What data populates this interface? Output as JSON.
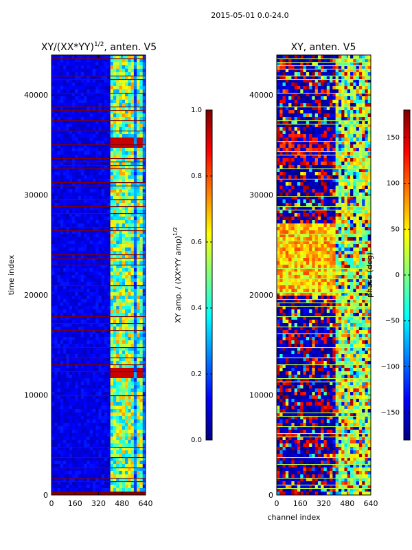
{
  "figure": {
    "suptitle": "2015-05-01 0.0-24.0",
    "shared_xlabel": "channel index"
  },
  "colormap_stops": [
    "#00007f",
    "#0000ff",
    "#007fff",
    "#00ffff",
    "#7fff7f",
    "#ffff00",
    "#ff7f00",
    "#ff0000",
    "#7f0000"
  ],
  "chart_data": [
    {
      "type": "heatmap",
      "title_main": "XY/(XX*YY)",
      "title_exp": "1/2",
      "title_suffix": ", anten. V5",
      "xlabel": "",
      "ylabel": "time index",
      "xlim": [
        0,
        640
      ],
      "ylim": [
        0,
        44000
      ],
      "xticks": [
        0,
        160,
        320,
        480,
        640
      ],
      "yticks": [
        0,
        10000,
        20000,
        30000,
        40000
      ],
      "band_channels": [
        [
          410,
          445
        ],
        [
          450,
          485
        ],
        [
          490,
          525
        ],
        [
          530,
          565
        ],
        [
          575,
          610
        ]
      ],
      "saturated_time_blocks": [
        [
          34800,
          35600
        ],
        [
          11800,
          12600
        ]
      ],
      "colorbar": {
        "label_main": "XY amp. / (XX*YY amp)",
        "label_exp": "1/2",
        "range": [
          0.0,
          1.0
        ],
        "ticks": [
          0.0,
          0.2,
          0.4,
          0.6,
          0.8,
          1.0
        ],
        "tick_labels": [
          "0.0",
          "0.2",
          "0.4",
          "0.6",
          "0.8",
          "1.0"
        ]
      }
    },
    {
      "type": "heatmap",
      "title_main": "XY, anten. V5",
      "xlabel": "channel index",
      "ylabel": "",
      "xlim": [
        0,
        640
      ],
      "ylim": [
        0,
        44000
      ],
      "xticks": [
        0,
        160,
        320,
        480,
        640
      ],
      "yticks": [
        0,
        10000,
        20000,
        30000,
        40000
      ],
      "colorbar": {
        "label_main": "phase (deg)",
        "range": [
          -180,
          180
        ],
        "ticks": [
          -150,
          -100,
          -50,
          0,
          50,
          100,
          150
        ],
        "tick_labels": [
          "−150",
          "−100",
          "−50",
          "0",
          "50",
          "100",
          "150"
        ]
      }
    }
  ]
}
